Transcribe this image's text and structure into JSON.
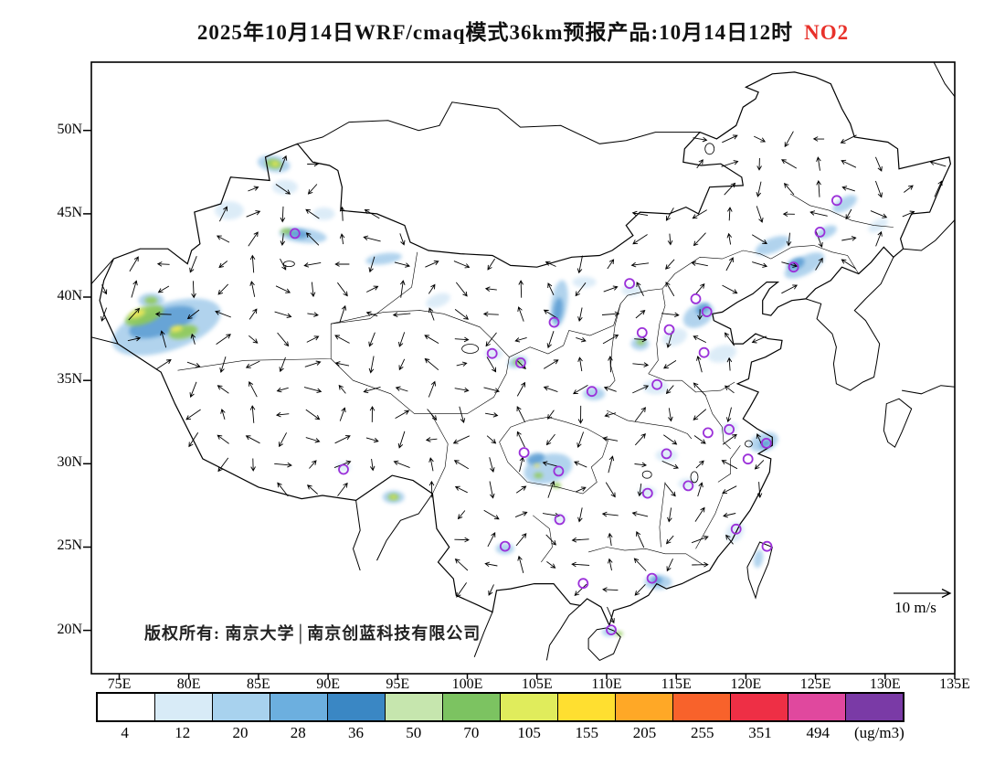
{
  "title": {
    "main": "2025年10月14日WRF/cmaq模式36km预报产品:10月14日12时",
    "species": "NO2",
    "species_color": "#e8312a"
  },
  "annotations": {
    "copyright": "版权所有: 南京大学│南京创蓝科技有限公司",
    "wind_reference": "10 m/s"
  },
  "axes": {
    "lat": [
      "50N",
      "45N",
      "40N",
      "35N",
      "30N",
      "25N",
      "20N"
    ],
    "lon": [
      "75E",
      "80E",
      "85E",
      "90E",
      "95E",
      "100E",
      "105E",
      "110E",
      "115E",
      "120E",
      "125E",
      "130E",
      "135E"
    ]
  },
  "colorbar": {
    "tick_labels": [
      "4",
      "12",
      "20",
      "28",
      "36",
      "50",
      "70",
      "105",
      "155",
      "205",
      "255",
      "351",
      "494"
    ],
    "unit": "(ug/m3)",
    "colors": [
      "#ffffff",
      "#d8ebf7",
      "#a8d2ee",
      "#6cafdf",
      "#3a87c4",
      "#c6e6ae",
      "#7cc361",
      "#e0ec5c",
      "#ffdf30",
      "#ffa826",
      "#f8622b",
      "#ee2f45",
      "#e0489e",
      "#7a3aa6"
    ]
  },
  "chart_data": {
    "type": "heatmap",
    "title": "2025年10月14日WRF/cmaq模式36km预报产品:10月14日12时 NO2",
    "species": "NO2",
    "model": "WRF/cmaq 36km",
    "valid_time": "10月14日12时",
    "unit": "ug/m3",
    "extent": {
      "lon_min": 73,
      "lon_max": 135,
      "lat_min": 17.4,
      "lat_max": 54.1
    },
    "lon_ticks": [
      75,
      80,
      85,
      90,
      95,
      100,
      105,
      110,
      115,
      120,
      125,
      130,
      135
    ],
    "lat_ticks": [
      50,
      45,
      40,
      35,
      30,
      25,
      20
    ],
    "levels_ugm3": [
      4,
      12,
      20,
      28,
      36,
      50,
      70,
      105,
      155,
      205,
      255,
      351,
      494
    ],
    "wind_reference_ms": 10,
    "marker_color": "#9b30d9",
    "hotspot_palette": {
      "1": "#d9eaf7",
      "2": "#a9cfec",
      "3": "#5f9fd4",
      "4": "#8fca55",
      "5": "#efe85a"
    },
    "city_markers_lonlat": [
      [
        87.62,
        43.82
      ],
      [
        126.53,
        45.8
      ],
      [
        125.32,
        43.9
      ],
      [
        123.43,
        41.8
      ],
      [
        111.65,
        40.82
      ],
      [
        116.4,
        39.9
      ],
      [
        117.2,
        39.12
      ],
      [
        114.5,
        38.05
      ],
      [
        112.55,
        37.87
      ],
      [
        117.0,
        36.67
      ],
      [
        113.62,
        34.75
      ],
      [
        108.94,
        34.34
      ],
      [
        106.23,
        38.49
      ],
      [
        103.83,
        36.06
      ],
      [
        101.78,
        36.62
      ],
      [
        91.11,
        29.66
      ],
      [
        104.07,
        30.67
      ],
      [
        106.55,
        29.56
      ],
      [
        106.63,
        26.65
      ],
      [
        102.71,
        25.05
      ],
      [
        108.32,
        22.82
      ],
      [
        110.33,
        20.03
      ],
      [
        113.26,
        23.13
      ],
      [
        112.94,
        28.23
      ],
      [
        114.3,
        30.6
      ],
      [
        115.86,
        28.68
      ],
      [
        117.28,
        31.86
      ],
      [
        118.8,
        32.06
      ],
      [
        121.47,
        31.23
      ],
      [
        120.15,
        30.28
      ],
      [
        119.3,
        26.08
      ],
      [
        121.52,
        25.04
      ]
    ],
    "hotspots": [
      [
        78.4,
        38.2,
        62,
        26,
        -18,
        2
      ],
      [
        78.1,
        38.5,
        38,
        14,
        -18,
        3
      ],
      [
        76.8,
        38.9,
        22,
        9,
        -20,
        4
      ],
      [
        79.6,
        37.9,
        16,
        7,
        -12,
        4
      ],
      [
        76.3,
        39.0,
        9,
        4,
        -20,
        5
      ],
      [
        79.1,
        38.1,
        7,
        3.5,
        -12,
        5
      ],
      [
        77.3,
        39.8,
        14,
        8,
        0,
        2
      ],
      [
        77.3,
        39.8,
        7,
        4,
        0,
        4
      ],
      [
        86.1,
        48.0,
        18,
        9,
        10,
        2
      ],
      [
        86.1,
        48.0,
        9,
        5,
        10,
        4
      ],
      [
        86.2,
        48.0,
        4,
        2.5,
        10,
        5
      ],
      [
        86.9,
        46.6,
        14,
        8,
        0,
        1
      ],
      [
        82.9,
        45.2,
        16,
        10,
        0,
        1
      ],
      [
        89.7,
        45.0,
        12,
        7,
        0,
        1
      ],
      [
        88.2,
        43.7,
        26,
        8,
        6,
        2
      ],
      [
        87.8,
        43.8,
        12,
        5,
        6,
        3
      ],
      [
        87.0,
        43.95,
        6,
        3,
        0,
        4
      ],
      [
        94.0,
        42.3,
        20,
        6,
        -8,
        2
      ],
      [
        97.9,
        39.8,
        14,
        7,
        -20,
        1
      ],
      [
        101.9,
        36.6,
        10,
        6,
        0,
        1
      ],
      [
        103.6,
        36.1,
        11,
        6,
        -15,
        2
      ],
      [
        103.6,
        36.1,
        5,
        3,
        0,
        4
      ],
      [
        106.6,
        39.6,
        9,
        26,
        8,
        2
      ],
      [
        106.5,
        39.2,
        5,
        14,
        8,
        3
      ],
      [
        108.4,
        40.9,
        13,
        6,
        0,
        1
      ],
      [
        111.8,
        40.4,
        11,
        6,
        0,
        1
      ],
      [
        121.9,
        43.1,
        20,
        8,
        -22,
        2
      ],
      [
        124.2,
        41.9,
        24,
        10,
        -28,
        2
      ],
      [
        123.6,
        42.0,
        10,
        6,
        -25,
        3
      ],
      [
        127.1,
        45.6,
        15,
        7,
        -30,
        2
      ],
      [
        125.8,
        43.9,
        12,
        6,
        -25,
        2
      ],
      [
        129.5,
        44.3,
        12,
        6,
        -30,
        1
      ],
      [
        116.6,
        38.9,
        18,
        12,
        -30,
        2
      ],
      [
        116.9,
        39.3,
        8,
        5,
        -30,
        3
      ],
      [
        114.9,
        37.6,
        14,
        9,
        -20,
        1
      ],
      [
        112.4,
        37.2,
        10,
        7,
        0,
        2
      ],
      [
        112.45,
        37.3,
        4.5,
        3,
        0,
        4
      ],
      [
        118.3,
        36.6,
        16,
        9,
        -15,
        1
      ],
      [
        113.5,
        34.6,
        14,
        8,
        0,
        1
      ],
      [
        109.1,
        34.2,
        12,
        7,
        0,
        2
      ],
      [
        105.8,
        29.7,
        27,
        16,
        -15,
        2
      ],
      [
        104.9,
        30.3,
        10,
        6,
        -15,
        3
      ],
      [
        105.1,
        29.3,
        5,
        3,
        0,
        4
      ],
      [
        106.4,
        28.7,
        5,
        3,
        0,
        4
      ],
      [
        105.0,
        29.9,
        3,
        2,
        0,
        5
      ],
      [
        94.7,
        28.0,
        12,
        7,
        0,
        2
      ],
      [
        94.7,
        28.0,
        6,
        3.5,
        0,
        4
      ],
      [
        94.7,
        28.0,
        3,
        1.8,
        0,
        5
      ],
      [
        121.3,
        31.3,
        16,
        10,
        -20,
        2
      ],
      [
        121.4,
        31.2,
        7,
        4,
        -20,
        3
      ],
      [
        118.8,
        32.1,
        10,
        6,
        -20,
        1
      ],
      [
        114.3,
        30.5,
        12,
        7,
        0,
        1
      ],
      [
        112.9,
        28.3,
        10,
        6,
        0,
        1
      ],
      [
        115.8,
        28.8,
        10,
        6,
        0,
        1
      ],
      [
        113.7,
        22.9,
        15,
        8,
        0,
        2
      ],
      [
        113.6,
        23.0,
        6,
        4,
        0,
        3
      ],
      [
        102.7,
        24.9,
        10,
        6,
        0,
        2
      ],
      [
        106.6,
        26.7,
        8,
        5,
        0,
        1
      ],
      [
        119.2,
        25.9,
        9,
        12,
        35,
        1
      ],
      [
        120.9,
        24.3,
        5,
        10,
        10,
        2
      ],
      [
        110.2,
        19.9,
        8,
        5,
        0,
        2
      ],
      [
        110.9,
        19.8,
        4,
        2.5,
        0,
        4
      ],
      [
        91.1,
        29.8,
        8,
        5,
        0,
        1
      ]
    ]
  }
}
